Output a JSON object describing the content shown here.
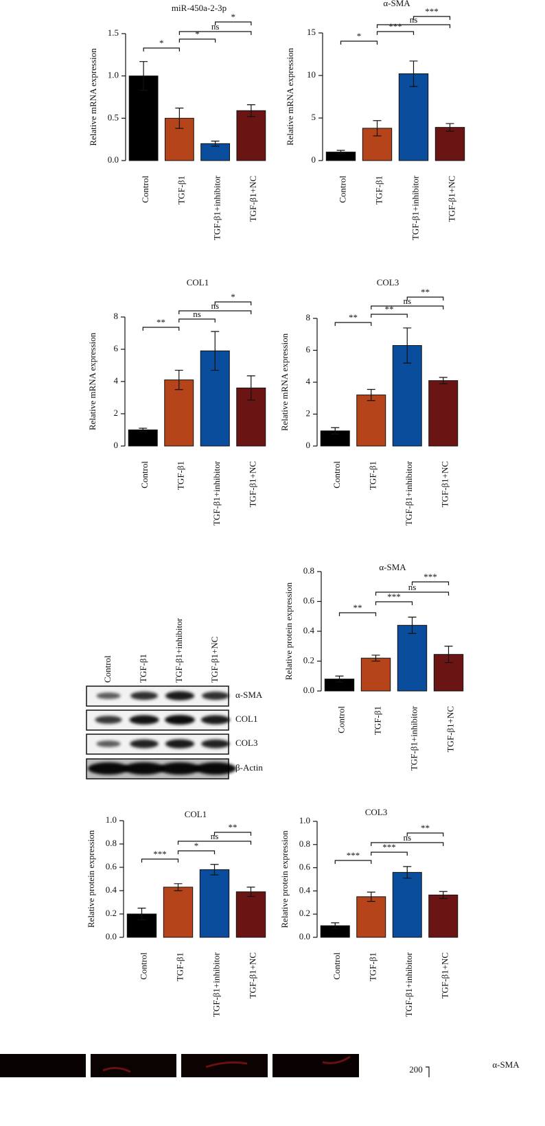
{
  "chart_data": [
    {
      "type": "bar",
      "title": "miR-450a-2-3p",
      "y_label": "Relative mRNA expression",
      "categories": [
        "Control",
        "TGF-β1",
        "TGF-β1+inhibitor",
        "TGF-β1+NC"
      ],
      "values": [
        1.0,
        0.5,
        0.2,
        0.59
      ],
      "errors": [
        0.17,
        0.12,
        0.03,
        0.07
      ],
      "colors": [
        "#000000",
        "#b5441a",
        "#0a4d9c",
        "#6b1414"
      ],
      "ylim": [
        0,
        1.5
      ],
      "yticks": [
        {
          "value": 0,
          "label": "0.0"
        },
        0.5,
        {
          "value": 1,
          "label": "1.0"
        },
        1.5
      ],
      "significance": [
        {
          "between": [
            0,
            1
          ],
          "label": "*"
        },
        {
          "between": [
            1,
            2
          ],
          "label": "*"
        },
        {
          "between": [
            1,
            3
          ],
          "label": "ns"
        },
        {
          "between": [
            2,
            3
          ],
          "label": "*"
        }
      ]
    },
    {
      "type": "bar",
      "title": "α-SMA",
      "y_label": "Relative mRNA expression",
      "categories": [
        "Control",
        "TGF-β1",
        "TGF-β1+inhibitor",
        "TGF-β1+NC"
      ],
      "values": [
        1.0,
        3.8,
        10.2,
        3.9
      ],
      "errors": [
        0.2,
        0.9,
        1.5,
        0.45
      ],
      "colors": [
        "#000000",
        "#b5441a",
        "#0a4d9c",
        "#6b1414"
      ],
      "ylim": [
        0,
        15
      ],
      "yticks": [
        0,
        5,
        10,
        15
      ],
      "significance": [
        {
          "between": [
            0,
            1
          ],
          "label": "*"
        },
        {
          "between": [
            1,
            2
          ],
          "label": "***"
        },
        {
          "between": [
            1,
            3
          ],
          "label": "ns"
        },
        {
          "between": [
            2,
            3
          ],
          "label": "***"
        }
      ]
    },
    {
      "type": "bar",
      "title": "COL1",
      "y_label": "Relative mRNA expression",
      "categories": [
        "Control",
        "TGF-β1",
        "TGF-β1+inhibitor",
        "TGF-β1+NC"
      ],
      "values": [
        1.0,
        4.1,
        5.9,
        3.6
      ],
      "errors": [
        0.1,
        0.6,
        1.2,
        0.75
      ],
      "colors": [
        "#000000",
        "#b5441a",
        "#0a4d9c",
        "#6b1414"
      ],
      "ylim": [
        0,
        8
      ],
      "yticks": [
        0,
        2,
        4,
        6,
        8
      ],
      "significance": [
        {
          "between": [
            0,
            1
          ],
          "label": "**"
        },
        {
          "between": [
            1,
            2
          ],
          "label": "ns"
        },
        {
          "between": [
            1,
            3
          ],
          "label": "ns"
        },
        {
          "between": [
            2,
            3
          ],
          "label": "*"
        }
      ]
    },
    {
      "type": "bar",
      "title": "COL3",
      "y_label": "Relative mRNA expression",
      "categories": [
        "Control",
        "TGF-β1",
        "TGF-β1+inhibitor",
        "TGF-β1+NC"
      ],
      "values": [
        0.95,
        3.2,
        6.3,
        4.1
      ],
      "errors": [
        0.2,
        0.35,
        1.1,
        0.2
      ],
      "colors": [
        "#000000",
        "#b5441a",
        "#0a4d9c",
        "#6b1414"
      ],
      "ylim": [
        0,
        8
      ],
      "yticks": [
        0,
        2,
        4,
        6,
        8
      ],
      "significance": [
        {
          "between": [
            0,
            1
          ],
          "label": "**"
        },
        {
          "between": [
            1,
            2
          ],
          "label": "**"
        },
        {
          "between": [
            1,
            3
          ],
          "label": "ns"
        },
        {
          "between": [
            2,
            3
          ],
          "label": "**"
        }
      ]
    },
    {
      "type": "bar",
      "title": "α-SMA",
      "y_label": "Relative protein expression",
      "categories": [
        "Control",
        "TGF-β1",
        "TGF-β1+inhibitor",
        "TGF-β1+NC"
      ],
      "values": [
        0.08,
        0.22,
        0.44,
        0.245
      ],
      "errors": [
        0.02,
        0.02,
        0.055,
        0.055
      ],
      "colors": [
        "#000000",
        "#b5441a",
        "#0a4d9c",
        "#6b1414"
      ],
      "ylim": [
        0,
        0.8
      ],
      "yticks": [
        {
          "value": 0,
          "label": "0.0"
        },
        0.2,
        0.4,
        0.6,
        0.8
      ],
      "significance": [
        {
          "between": [
            0,
            1
          ],
          "label": "**"
        },
        {
          "between": [
            1,
            2
          ],
          "label": "***"
        },
        {
          "between": [
            1,
            3
          ],
          "label": "ns"
        },
        {
          "between": [
            2,
            3
          ],
          "label": "***"
        }
      ]
    },
    {
      "type": "bar",
      "title": "COL1",
      "y_label": "Relative protein expression",
      "categories": [
        "Control",
        "TGF-β1",
        "TGF-β1+inhibitor",
        "TGF-β1+NC"
      ],
      "values": [
        0.2,
        0.43,
        0.58,
        0.39
      ],
      "errors": [
        0.05,
        0.03,
        0.045,
        0.04
      ],
      "colors": [
        "#000000",
        "#b5441a",
        "#0a4d9c",
        "#6b1414"
      ],
      "ylim": [
        0,
        1
      ],
      "yticks": [
        {
          "value": 0,
          "label": "0.0"
        },
        0.2,
        0.4,
        0.6,
        0.8,
        {
          "value": 1,
          "label": "1.0"
        }
      ],
      "significance": [
        {
          "between": [
            0,
            1
          ],
          "label": "***"
        },
        {
          "between": [
            1,
            2
          ],
          "label": "*"
        },
        {
          "between": [
            1,
            3
          ],
          "label": "ns"
        },
        {
          "between": [
            2,
            3
          ],
          "label": "**"
        }
      ]
    },
    {
      "type": "bar",
      "title": "COL3",
      "y_label": "Relative protein expression",
      "categories": [
        "Control",
        "TGF-β1",
        "TGF-β1+inhibitor",
        "TGF-β1+NC"
      ],
      "values": [
        0.1,
        0.35,
        0.56,
        0.365
      ],
      "errors": [
        0.025,
        0.04,
        0.05,
        0.03
      ],
      "colors": [
        "#000000",
        "#b5441a",
        "#0a4d9c",
        "#6b1414"
      ],
      "ylim": [
        0,
        1
      ],
      "yticks": [
        {
          "value": 0,
          "label": "0.0"
        },
        0.2,
        0.4,
        0.6,
        0.8,
        {
          "value": 1,
          "label": "1.0"
        }
      ],
      "significance": [
        {
          "between": [
            0,
            1
          ],
          "label": "***"
        },
        {
          "between": [
            1,
            2
          ],
          "label": "***"
        },
        {
          "between": [
            1,
            3
          ],
          "label": "ns"
        },
        {
          "between": [
            2,
            3
          ],
          "label": "**"
        }
      ]
    }
  ],
  "western_blot": {
    "lanes": [
      "Control",
      "TGF-β1",
      "TGF-β1+inhibitor",
      "TGF-β1+NC"
    ],
    "bands": [
      "α-SMA",
      "COL1",
      "COL3",
      "β-Actin"
    ]
  },
  "partial_panel": {
    "axis_label": "200",
    "legend": "α-SMA"
  }
}
